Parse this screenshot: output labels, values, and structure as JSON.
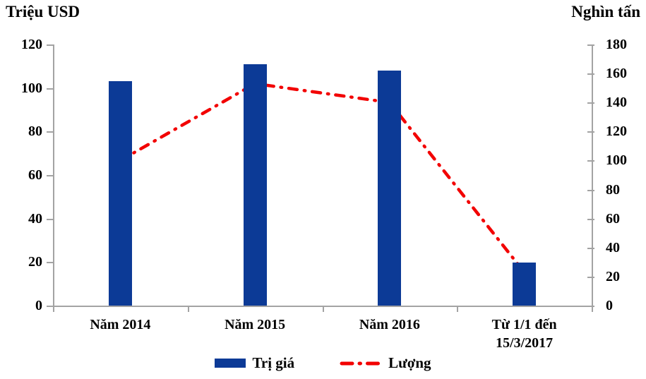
{
  "chart_data": {
    "type": "bar+line combo",
    "categories": [
      "Năm 2014",
      "Năm 2015",
      "Năm 2016",
      "Từ 1/1 đến\n15/3/2017"
    ],
    "series": [
      {
        "name": "Trị giá",
        "type": "bar",
        "axis": "left",
        "values": [
          103,
          111,
          108,
          19.7
        ],
        "color": "#0c3a96"
      },
      {
        "name": "Lượng",
        "type": "line",
        "axis": "right",
        "values": [
          100,
          153,
          140,
          23
        ],
        "color": "#f20000",
        "style": "dash-dot"
      }
    ],
    "left_axis": {
      "title": "Triệu USD",
      "min": 0,
      "max": 120,
      "step": 20,
      "ticks": [
        0,
        20,
        40,
        60,
        80,
        100,
        120
      ]
    },
    "right_axis": {
      "title": "Nghìn tấn",
      "min": 0,
      "max": 180,
      "step": 20,
      "ticks": [
        0,
        20,
        40,
        60,
        80,
        100,
        120,
        140,
        160,
        180
      ]
    },
    "grid": false,
    "legend_position": "bottom"
  },
  "colors": {
    "bar": "#0c3a96",
    "line": "#f20000",
    "axis": "#a3a3a3",
    "text": "#000000",
    "background": "#ffffff"
  }
}
